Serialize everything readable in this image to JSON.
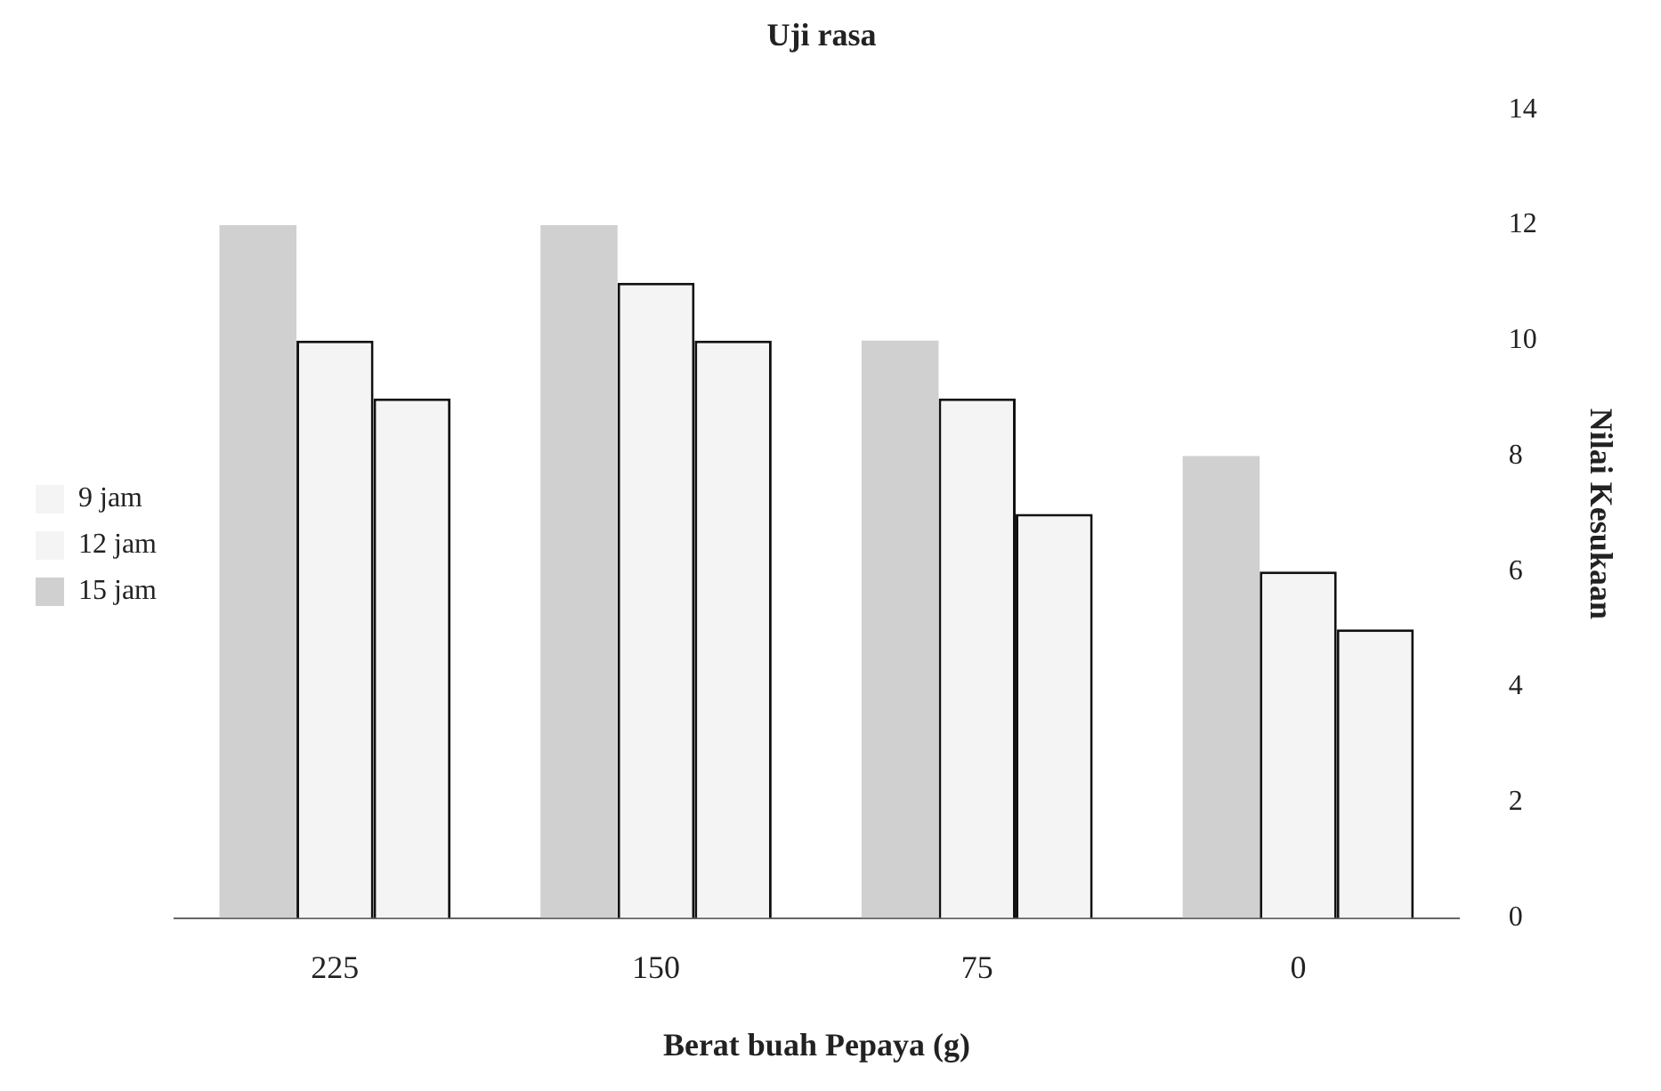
{
  "chart_data": {
    "type": "bar",
    "title": "Uji rasa",
    "xlabel": "Berat buah Pepaya (g)",
    "ylabel": "Nilai Kesukaan",
    "categories": [
      "225",
      "150",
      "75",
      "0"
    ],
    "series": [
      {
        "name": "15 jam",
        "color": "#d0d0d0",
        "values": [
          12,
          12,
          10,
          8
        ]
      },
      {
        "name": "12 jam",
        "color": "#f4f4f4",
        "values": [
          10,
          11,
          9,
          6
        ]
      },
      {
        "name": "9 jam",
        "color": "#f4f4f4",
        "values": [
          9,
          10,
          7,
          5
        ]
      }
    ],
    "ylim": [
      0,
      14
    ],
    "yticks": [
      0,
      2,
      4,
      6,
      8,
      10,
      12,
      14
    ],
    "grid": false,
    "legend": "left"
  }
}
